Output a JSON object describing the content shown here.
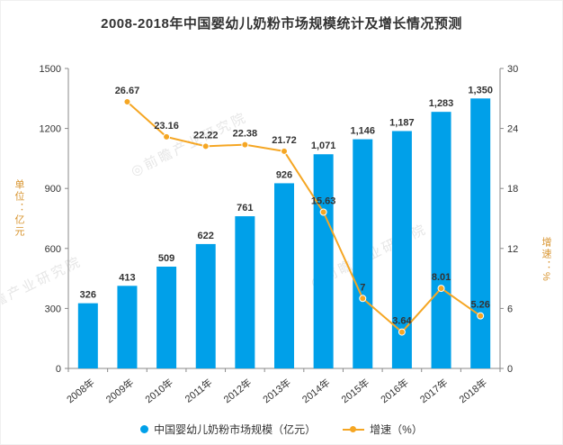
{
  "title": "2008-2018年中国婴幼儿奶粉市场规模统计及增长情况预测",
  "watermark": "前瞻产业研究院",
  "colors": {
    "bar": "#00A0E9",
    "line": "#F5A623",
    "data_label": "#333333",
    "axis": "#8a8a8a",
    "tick_label": "#333333",
    "axis_title": "#D8942F"
  },
  "chart_data": {
    "type": "bar+line",
    "categories": [
      "2008年",
      "2009年",
      "2010年",
      "2011年",
      "2012年",
      "2013年",
      "2014年",
      "2015年",
      "2016年",
      "2017年",
      "2018年"
    ],
    "series": [
      {
        "name": "中国婴幼儿奶粉市场规模（亿元）",
        "type": "bar",
        "values": [
          326,
          413,
          509,
          622,
          761,
          926,
          1071,
          1146,
          1187,
          1283,
          1350
        ],
        "labels": [
          "326",
          "413",
          "509",
          "622",
          "761",
          "926",
          "1,071",
          "1,146",
          "1,187",
          "1,283",
          "1,350"
        ]
      },
      {
        "name": "增速（%）",
        "type": "line",
        "values": [
          null,
          26.67,
          23.16,
          22.22,
          22.38,
          21.72,
          15.63,
          7,
          3.64,
          8.01,
          5.26
        ],
        "labels": [
          "",
          "26.67",
          "23.16",
          "22.22",
          "22.38",
          "21.72",
          "15.63",
          "7",
          "3.64",
          "8.01",
          "5.26"
        ]
      }
    ],
    "left_axis": {
      "label": "单位：亿元",
      "min": 0,
      "max": 1500,
      "ticks": [
        0,
        300,
        600,
        900,
        1200,
        1500
      ]
    },
    "right_axis": {
      "label": "增速：%",
      "min": 0,
      "max": 30,
      "ticks": [
        0,
        6,
        12,
        18,
        24,
        30
      ]
    },
    "legend": [
      "中国婴幼儿奶粉市场规模（亿元）",
      "增速（%）"
    ],
    "grid": false,
    "legend_position": "bottom"
  }
}
